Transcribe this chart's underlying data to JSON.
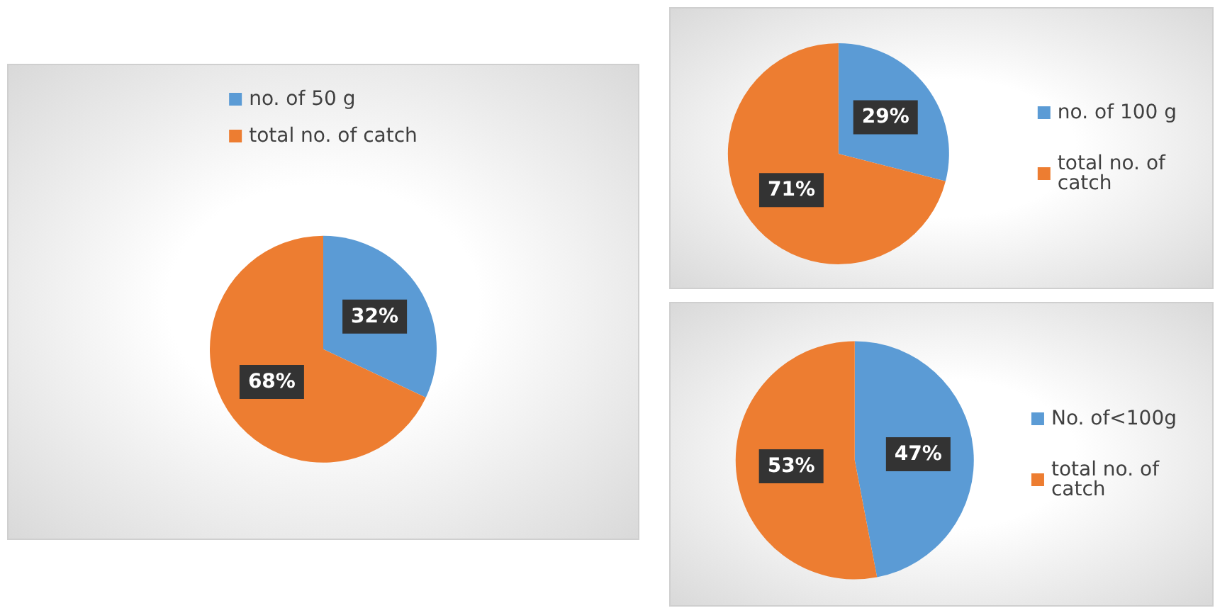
{
  "chart_data": [
    {
      "type": "pie",
      "categories": [
        "no. of 50 g",
        "total no. of catch"
      ],
      "values": [
        32,
        68
      ],
      "colors": [
        "#5b9bd5",
        "#ed7d31"
      ],
      "value_labels": [
        "32%",
        "68%"
      ],
      "legend": "top"
    },
    {
      "type": "pie",
      "categories": [
        "no. of 100 g",
        "total no. of catch"
      ],
      "values": [
        29,
        71
      ],
      "colors": [
        "#5b9bd5",
        "#ed7d31"
      ],
      "value_labels": [
        "29%",
        "71%"
      ],
      "legend": "right"
    },
    {
      "type": "pie",
      "categories": [
        "No. of<100g",
        "total no. of catch"
      ],
      "values": [
        47,
        53
      ],
      "colors": [
        "#5b9bd5",
        "#ed7d31"
      ],
      "value_labels": [
        "47%",
        "53%"
      ],
      "legend": "right"
    }
  ]
}
